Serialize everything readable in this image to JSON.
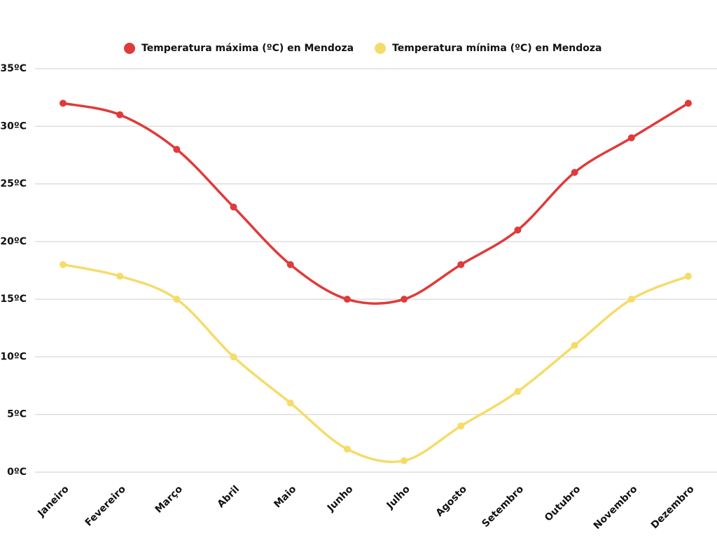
{
  "chart_data": {
    "type": "line",
    "categories": [
      "Janeiro",
      "Fevereiro",
      "Março",
      "Abril",
      "Maio",
      "Junho",
      "Julho",
      "Agosto",
      "Setembro",
      "Outubro",
      "Novembro",
      "Dezembro"
    ],
    "series": [
      {
        "name": "Temperatura máxima (ºC) en Mendoza",
        "color": "#e03a3a",
        "values": [
          32,
          31,
          28,
          23,
          18,
          15,
          15,
          18,
          21,
          26,
          29,
          32
        ]
      },
      {
        "name": "Temperatura mínima (ºC) en Mendoza",
        "color": "#f5dc6a",
        "values": [
          18,
          17,
          15,
          10,
          6,
          2,
          1,
          4,
          7,
          11,
          15,
          17
        ]
      }
    ],
    "ylim": [
      0,
      35
    ],
    "yticks": [
      {
        "value": 0,
        "label": "0ºC"
      },
      {
        "value": 5,
        "label": "5ºC"
      },
      {
        "value": 10,
        "label": "10ºC"
      },
      {
        "value": 15,
        "label": "15ºC"
      },
      {
        "value": 20,
        "label": "20ºC"
      },
      {
        "value": 25,
        "label": "25ºC"
      },
      {
        "value": 30,
        "label": "30ºC"
      },
      {
        "value": 35,
        "label": "35ºC"
      }
    ],
    "grid": true,
    "legend": "top"
  }
}
